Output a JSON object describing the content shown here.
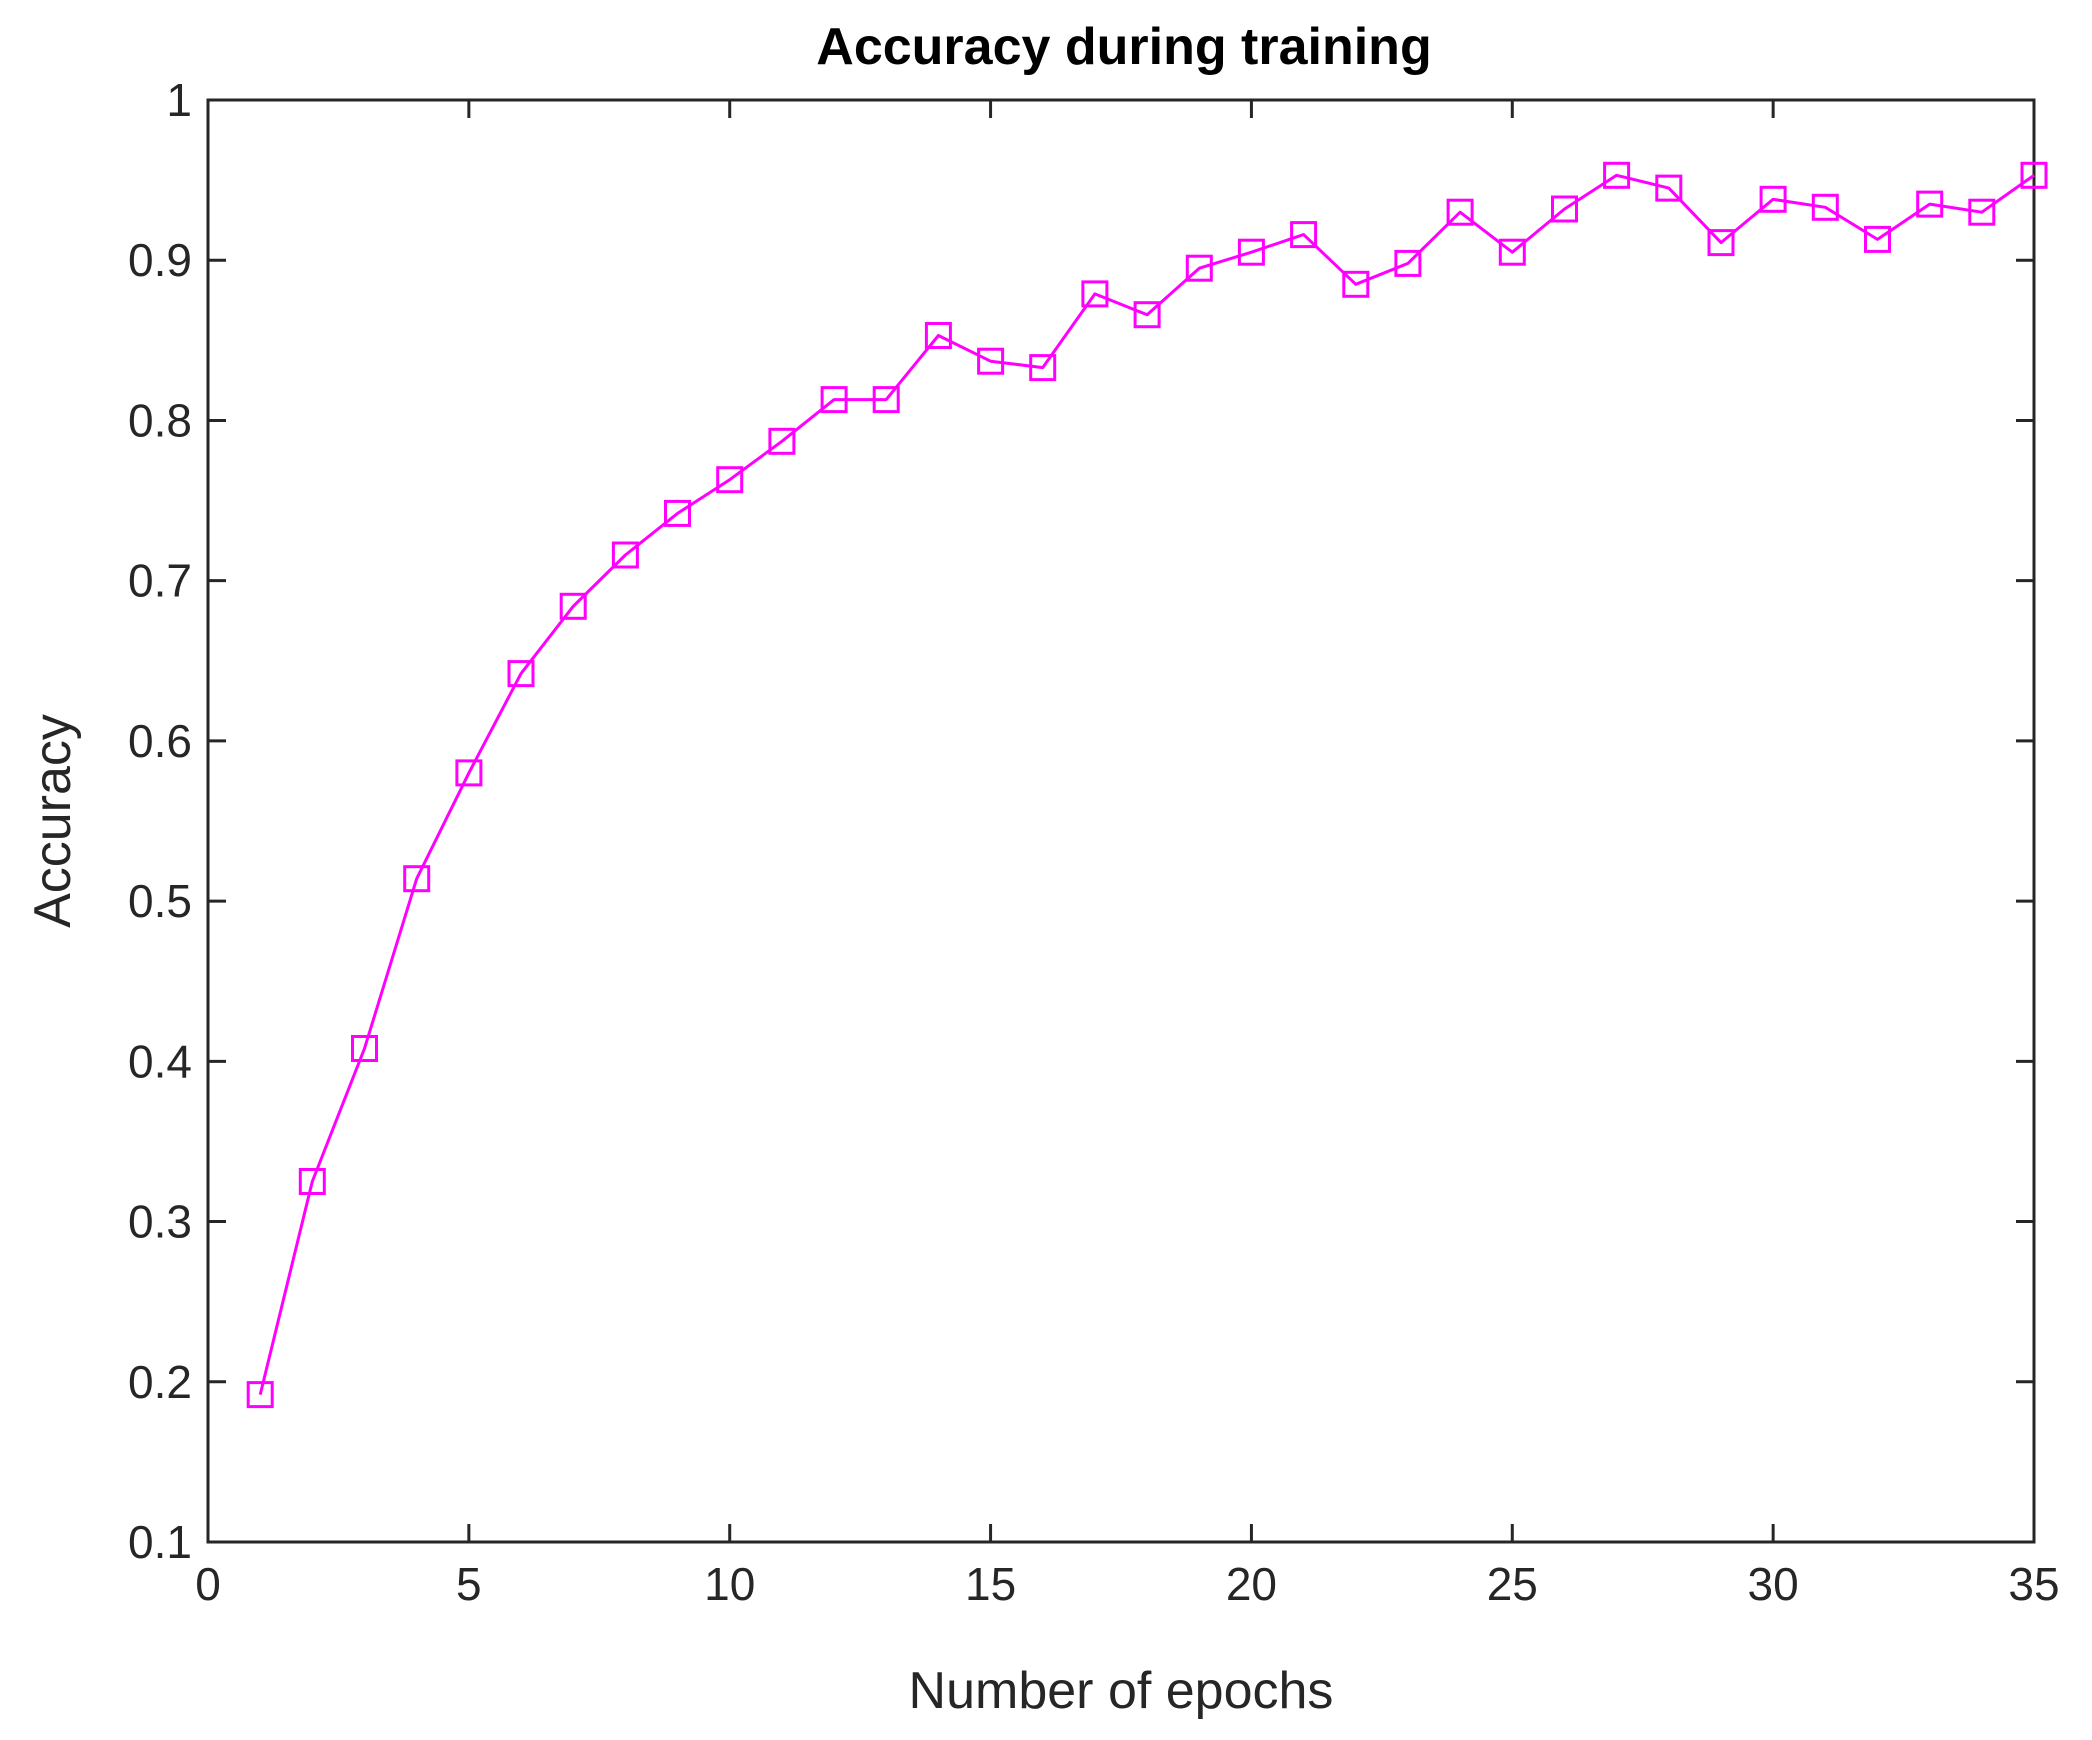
{
  "chart_data": {
    "type": "line",
    "title": "Accuracy during training",
    "xlabel": "Number of epochs",
    "ylabel": "Accuracy",
    "xlim": [
      0,
      35
    ],
    "ylim": [
      0.1,
      1
    ],
    "x_ticks": [
      0,
      5,
      10,
      15,
      20,
      25,
      30,
      35
    ],
    "x_tick_labels": [
      "0",
      "5",
      "10",
      "15",
      "20",
      "25",
      "30",
      "35"
    ],
    "y_ticks": [
      0.1,
      0.2,
      0.3,
      0.4,
      0.5,
      0.6,
      0.7,
      0.8,
      0.9,
      1
    ],
    "y_tick_labels": [
      "0.1",
      "0.2",
      "0.3",
      "0.4",
      "0.5",
      "0.6",
      "0.7",
      "0.8",
      "0.9",
      "1"
    ],
    "grid": false,
    "legend": "none",
    "series": [
      {
        "color": "#ff00ff",
        "marker": "square",
        "x": [
          1,
          2,
          3,
          4,
          5,
          6,
          7,
          8,
          9,
          10,
          11,
          12,
          13,
          14,
          15,
          16,
          17,
          18,
          19,
          20,
          21,
          22,
          23,
          24,
          25,
          26,
          27,
          28,
          29,
          30,
          31,
          32,
          33,
          34,
          35
        ],
        "y": [
          0.192,
          0.325,
          0.408,
          0.514,
          0.58,
          0.642,
          0.684,
          0.716,
          0.742,
          0.763,
          0.787,
          0.813,
          0.813,
          0.853,
          0.837,
          0.833,
          0.879,
          0.866,
          0.895,
          0.905,
          0.916,
          0.885,
          0.898,
          0.93,
          0.905,
          0.932,
          0.953,
          0.945,
          0.911,
          0.938,
          0.933,
          0.913,
          0.935,
          0.93,
          0.953
        ]
      }
    ]
  }
}
